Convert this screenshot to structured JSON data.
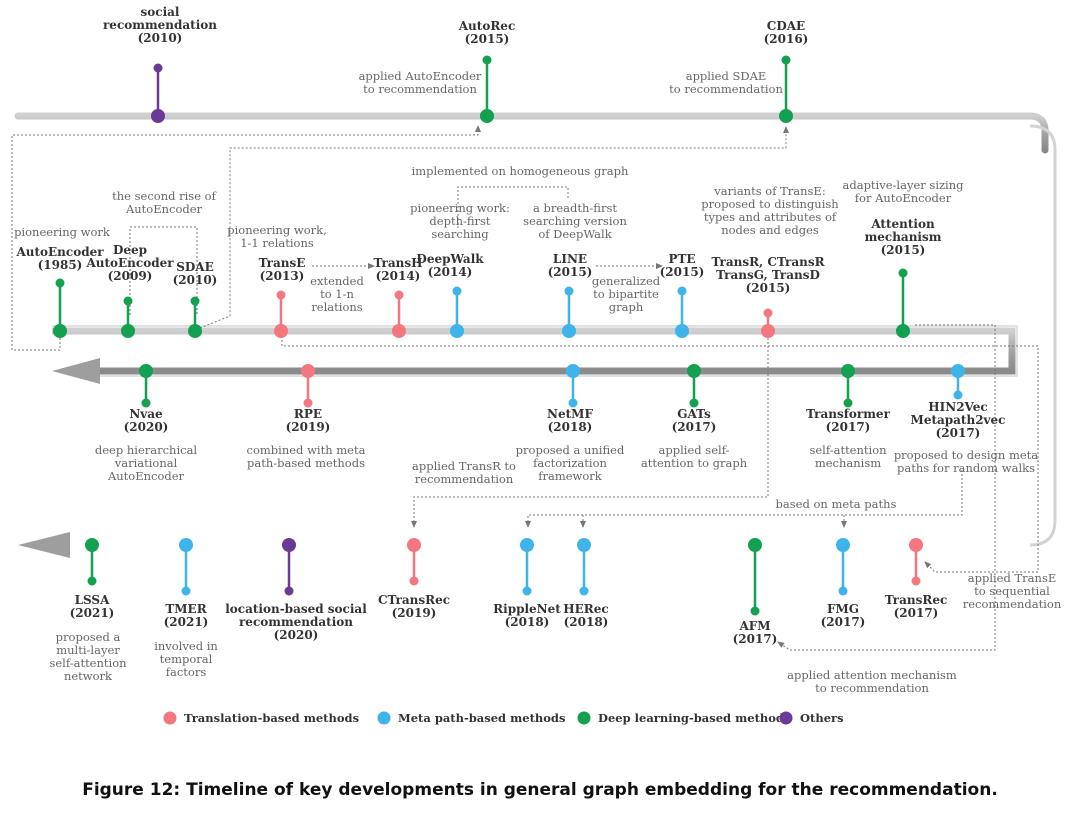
{
  "colors": {
    "translation": "#f4767f",
    "metapath": "#3eb4ea",
    "deep": "#13a050",
    "others": "#6a3a96",
    "arrow": "#9e9e9e",
    "text_title": "#333333",
    "text_sub": "#666666",
    "connector": "#777777"
  },
  "legend": [
    {
      "label": "Translation-based methods",
      "color_key": "translation"
    },
    {
      "label": "Meta path-based methods",
      "color_key": "metapath"
    },
    {
      "label": "Deep learning-based methods",
      "color_key": "deep"
    },
    {
      "label": "Others",
      "color_key": "others"
    }
  ],
  "nodes": [
    {
      "id": "social",
      "cat": "others",
      "title": [
        "social",
        "recommendation",
        "(2010)"
      ],
      "desc": []
    },
    {
      "id": "autorec",
      "cat": "deep",
      "title": [
        "AutoRec",
        "(2015)"
      ],
      "desc": [
        "applied AutoEncoder",
        "to recommendation"
      ]
    },
    {
      "id": "cdae",
      "cat": "deep",
      "title": [
        "CDAE",
        "(2016)"
      ],
      "desc": [
        "applied SDAE",
        "to recommendation"
      ]
    },
    {
      "id": "autoencoder",
      "cat": "deep",
      "title": [
        "AutoEncoder",
        "(1985)"
      ],
      "desc": [
        "pioneering work"
      ]
    },
    {
      "id": "deepae",
      "cat": "deep",
      "title": [
        "Deep",
        "AutoEncoder",
        "(2009)"
      ],
      "desc": []
    },
    {
      "id": "sdae",
      "cat": "deep",
      "title": [
        "SDAE",
        "(2010)"
      ],
      "desc": []
    },
    {
      "id": "transe",
      "cat": "translation",
      "title": [
        "TransE",
        "(2013)"
      ],
      "desc": [
        "pioneering work,",
        "1-1 relations"
      ]
    },
    {
      "id": "transh",
      "cat": "translation",
      "title": [
        "TransH",
        "(2014)"
      ],
      "desc": []
    },
    {
      "id": "deepwalk",
      "cat": "metapath",
      "title": [
        "DeepWalk",
        "(2014)"
      ],
      "desc": [
        "pioneering work:",
        "depth-first",
        "searching"
      ]
    },
    {
      "id": "line",
      "cat": "metapath",
      "title": [
        "LINE",
        "(2015)"
      ],
      "desc": [
        "a breadth-first",
        "searching version",
        "of DeepWalk"
      ]
    },
    {
      "id": "pte",
      "cat": "metapath",
      "title": [
        "PTE",
        "(2015)"
      ],
      "desc": []
    },
    {
      "id": "transr",
      "cat": "translation",
      "title": [
        "TransR, CTransR",
        "TransG, TransD",
        "(2015)"
      ],
      "desc": [
        "variants of TransE:",
        "proposed to distinguish",
        "types and attributes of",
        "nodes and edges"
      ]
    },
    {
      "id": "attention",
      "cat": "deep",
      "title": [
        "Attention",
        "mechanism",
        "(2015)"
      ],
      "desc": [
        "adaptive-layer sizing",
        "for AutoEncoder"
      ]
    },
    {
      "id": "nvae",
      "cat": "deep",
      "title": [
        "Nvae",
        "(2020)"
      ],
      "desc": [
        "deep hierarchical",
        "variational",
        "AutoEncoder"
      ]
    },
    {
      "id": "rpe",
      "cat": "translation",
      "title": [
        "RPE",
        "(2019)"
      ],
      "desc": [
        "combined with meta",
        "path-based methods"
      ]
    },
    {
      "id": "netmf",
      "cat": "metapath",
      "title": [
        "NetMF",
        "(2018)"
      ],
      "desc": [
        "proposed a unified",
        "factorization",
        "framework"
      ]
    },
    {
      "id": "gats",
      "cat": "deep",
      "title": [
        "GATs",
        "(2017)"
      ],
      "desc": [
        "applied self-",
        "attention to graph"
      ]
    },
    {
      "id": "transformer",
      "cat": "deep",
      "title": [
        "Transformer",
        "(2017)"
      ],
      "desc": [
        "self-attention",
        "mechanism"
      ]
    },
    {
      "id": "hin2vec",
      "cat": "metapath",
      "title": [
        "HIN2Vec",
        "Metapath2vec",
        "(2017)"
      ],
      "desc": [
        "proposed to design meta",
        "paths for random walks"
      ]
    },
    {
      "id": "lssa",
      "cat": "deep",
      "title": [
        "LSSA",
        "(2021)"
      ],
      "desc": [
        "proposed a",
        "multi-layer",
        "self-attention",
        "network"
      ]
    },
    {
      "id": "tmer",
      "cat": "metapath",
      "title": [
        "TMER",
        "(2021)"
      ],
      "desc": [
        "involved in",
        "temporal",
        "factors"
      ]
    },
    {
      "id": "lbsr",
      "cat": "others",
      "title": [
        "location-based social",
        "recommendation",
        "(2020)"
      ],
      "desc": []
    },
    {
      "id": "ctransrec",
      "cat": "translation",
      "title": [
        "CTransRec",
        "(2019)"
      ],
      "desc": []
    },
    {
      "id": "ripplenet",
      "cat": "metapath",
      "title": [
        "RippleNet",
        "(2018)"
      ],
      "desc": []
    },
    {
      "id": "herec",
      "cat": "metapath",
      "title": [
        "HERec",
        "(2018)"
      ],
      "desc": []
    },
    {
      "id": "afm",
      "cat": "deep",
      "title": [
        "AFM",
        "(2017)"
      ],
      "desc": []
    },
    {
      "id": "fmg",
      "cat": "metapath",
      "title": [
        "FMG",
        "(2017)"
      ],
      "desc": []
    },
    {
      "id": "transrec",
      "cat": "translation",
      "title": [
        "TransRec",
        "(2017)"
      ],
      "desc": []
    }
  ],
  "annotations": {
    "second_rise": [
      "the second rise of",
      "AutoEncoder"
    ],
    "homogeneous": [
      "implemented on homogeneous graph"
    ],
    "extended": [
      "extended",
      "to 1-n",
      "relations"
    ],
    "generalized": [
      "generalized",
      "to bipartite",
      "graph"
    ],
    "applied_transr": [
      "applied TransR to",
      "recommendation"
    ],
    "based_meta": [
      "based on meta paths"
    ],
    "applied_transe": [
      "applied TransE",
      "to sequential",
      "recommendation"
    ],
    "applied_attention": [
      "applied attention mechanism",
      "to recommendation"
    ]
  },
  "caption": "Figure 12: Timeline of key developments in general graph embedding for the recommendation."
}
